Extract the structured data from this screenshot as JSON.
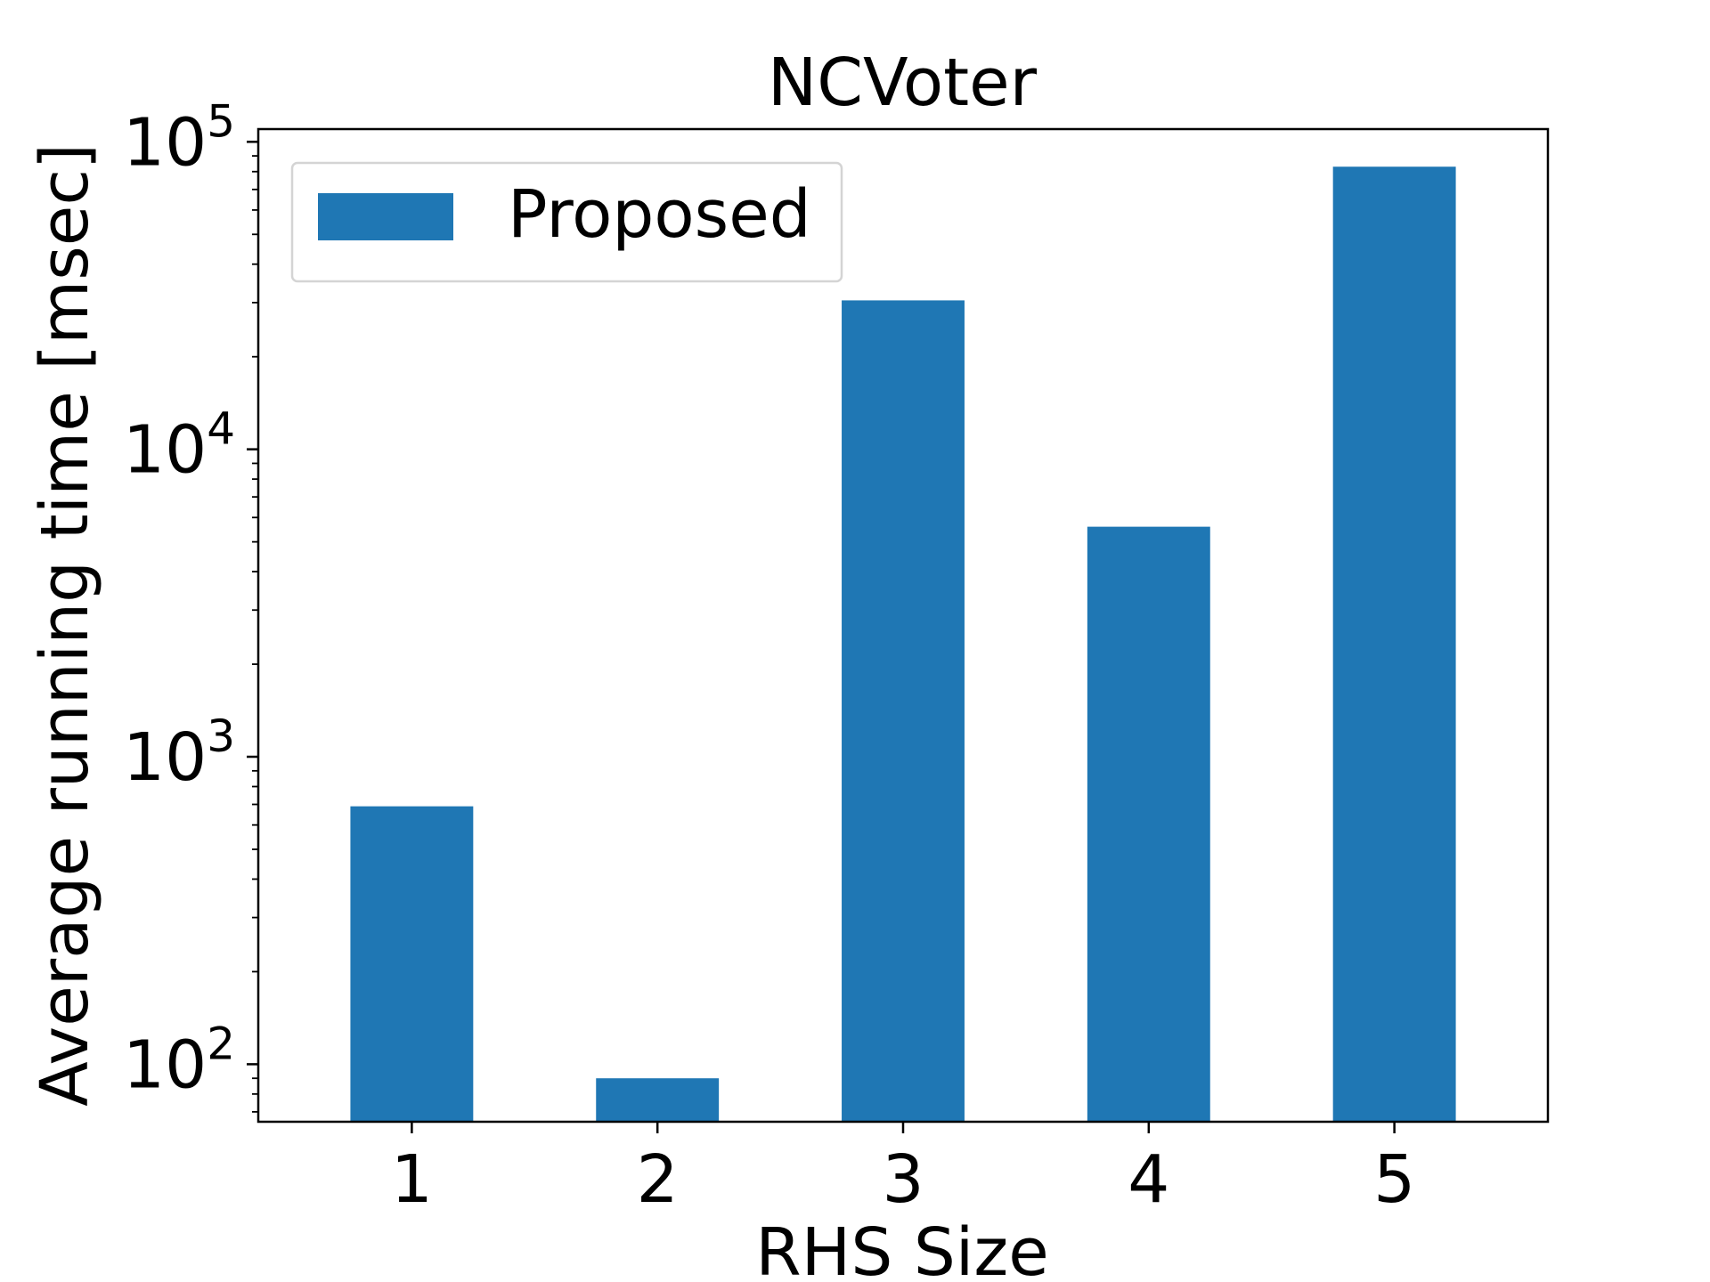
{
  "chart_data": {
    "type": "bar",
    "title": "NCVoter",
    "xlabel": "RHS Size",
    "ylabel": "Average running time [msec]",
    "y_scale": "log",
    "ylim": [
      65,
      110000
    ],
    "categories": [
      "1",
      "2",
      "3",
      "4",
      "5"
    ],
    "series": [
      {
        "name": "Proposed",
        "values": [
          690,
          90,
          30500,
          5600,
          83000
        ]
      }
    ],
    "y_ticks": [
      {
        "value": 100,
        "base": "10",
        "exp": "2"
      },
      {
        "value": 1000,
        "base": "10",
        "exp": "3"
      },
      {
        "value": 10000,
        "base": "10",
        "exp": "4"
      },
      {
        "value": 100000,
        "base": "10",
        "exp": "5"
      }
    ],
    "legend_position": "upper-left",
    "grid": false,
    "colors": {
      "bar": "#1f77b4",
      "axis": "#000000",
      "legend_border": "#d4d4d4"
    }
  }
}
